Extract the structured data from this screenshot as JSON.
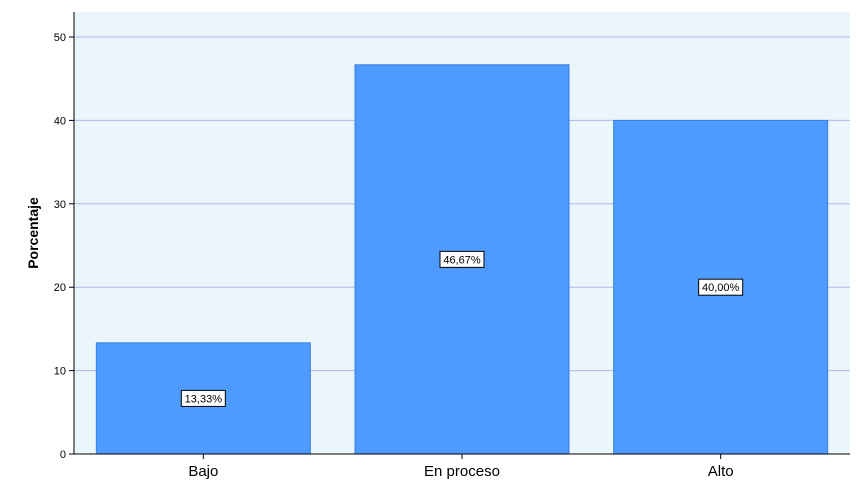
{
  "chart_data": {
    "type": "bar",
    "categories": [
      "Bajo",
      "En proceso",
      "Alto"
    ],
    "values": [
      13.33,
      46.67,
      40.0
    ],
    "data_labels": [
      "13,33%",
      "46,67%",
      "40,00%"
    ],
    "xlabel": "",
    "ylabel": "Porcentaje",
    "ylim": [
      0,
      52
    ],
    "yticks": [
      0,
      10,
      20,
      30,
      40,
      50
    ],
    "grid": true,
    "colors": {
      "plot_background": "#EAF6FA",
      "bar": "#4E9BFF",
      "bar_stroke": "#3A7FE0",
      "gridline": "#AEB8EE"
    }
  }
}
